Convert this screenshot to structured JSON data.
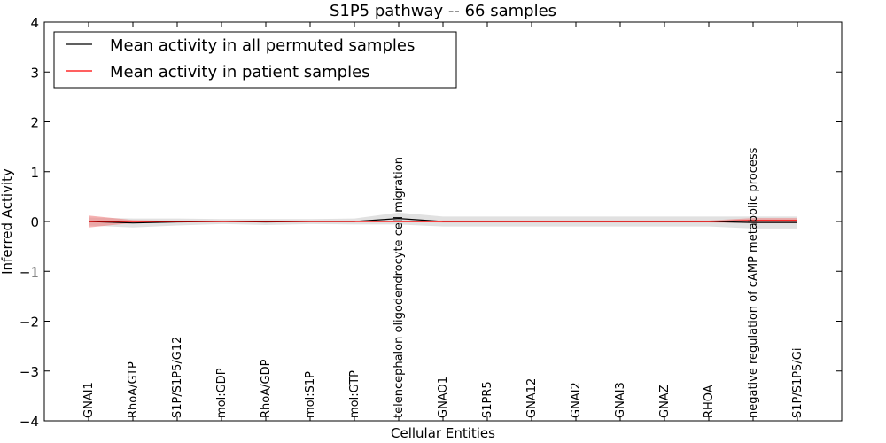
{
  "chart_data": {
    "type": "line",
    "title": "S1P5 pathway -- 66 samples",
    "xlabel": "Cellular Entities",
    "ylabel": "Inferred Activity",
    "ylim": [
      -4,
      4
    ],
    "yticks": [
      -4,
      -3,
      -2,
      -1,
      0,
      1,
      2,
      3,
      4
    ],
    "ytick_labels": [
      "−4",
      "−3",
      "−2",
      "−1",
      "0",
      "1",
      "2",
      "3",
      "4"
    ],
    "legend_position": "top-left",
    "categories": [
      "GNAI1",
      "RhoA/GTP",
      "S1P/S1P5/G12",
      "mol:GDP",
      "RhoA/GDP",
      "mol:S1P",
      "mol:GTP",
      "telencephalon oligodendrocyte cell migration",
      "GNAO1",
      "S1PR5",
      "GNA12",
      "GNAI2",
      "GNAI3",
      "GNAZ",
      "RHOA",
      "negative regulation of cAMP metabolic process",
      "S1P/S1P5/Gi"
    ],
    "series": [
      {
        "name": "Mean activity in all permuted samples",
        "color": "#000000",
        "band_color": "#c8c8c8",
        "values": [
          0.0,
          -0.03,
          -0.01,
          0.0,
          -0.01,
          0.0,
          0.0,
          0.06,
          0.0,
          0.0,
          0.0,
          0.0,
          0.0,
          0.0,
          0.0,
          -0.02,
          -0.02
        ],
        "band": [
          0.08,
          0.09,
          0.07,
          0.05,
          0.06,
          0.05,
          0.06,
          0.12,
          0.1,
          0.1,
          0.1,
          0.1,
          0.1,
          0.1,
          0.1,
          0.12,
          0.12
        ]
      },
      {
        "name": "Mean activity in patient samples",
        "color": "#ff0000",
        "band_color": "#f08080",
        "values": [
          0.0,
          0.0,
          0.0,
          0.0,
          0.0,
          0.0,
          0.0,
          0.0,
          0.0,
          0.0,
          0.0,
          0.0,
          0.0,
          0.0,
          0.0,
          0.02,
          0.02
        ],
        "band": [
          0.12,
          0.03,
          0.01,
          0.0,
          0.0,
          0.0,
          0.0,
          0.01,
          0.02,
          0.02,
          0.02,
          0.02,
          0.02,
          0.02,
          0.02,
          0.05,
          0.05
        ]
      }
    ]
  }
}
